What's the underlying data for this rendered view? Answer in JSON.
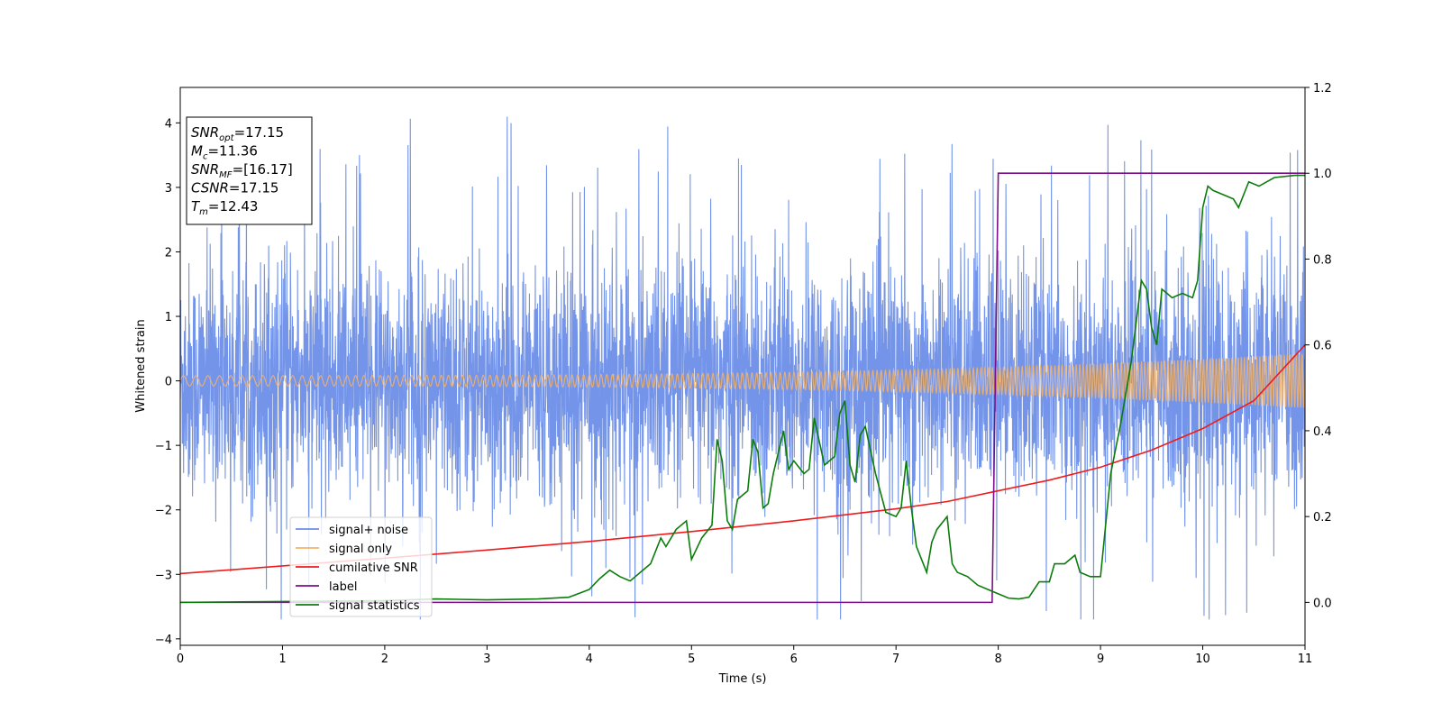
{
  "chart_data": {
    "type": "line",
    "title": "",
    "xlabel": "Time (s)",
    "ylabel": "Whitened strain",
    "y2label": "",
    "xlim": [
      0,
      11
    ],
    "ylim": [
      -4.1,
      4.55
    ],
    "y2lim": [
      -0.1,
      1.2
    ],
    "xticks": [
      0,
      1,
      2,
      3,
      4,
      5,
      6,
      7,
      8,
      9,
      10,
      11
    ],
    "yticks": [
      -4,
      -3,
      -2,
      -1,
      0,
      1,
      2,
      3,
      4
    ],
    "y2ticks": [
      0.0,
      0.2,
      0.4,
      0.6,
      0.8,
      1.0,
      1.2
    ],
    "grid": false,
    "legend_position": "lower-left",
    "info_box": {
      "lines": [
        {
          "base": "SNR",
          "sub": "opt",
          "value": "=17.15"
        },
        {
          "base": "M",
          "sub": "c",
          "value": "=11.36"
        },
        {
          "base": "SNR",
          "sub": "MF",
          "value": "=[16.17]"
        },
        {
          "base": "CSNR",
          "sub": "",
          "value": "=17.15"
        },
        {
          "base": "T",
          "sub": "m",
          "value": "=12.43"
        }
      ]
    },
    "series": [
      {
        "name": "signal+ noise",
        "color": "#6b8ee8",
        "axis": "left",
        "kind": "noise",
        "description_values": {
          "sigma": 0.9,
          "typical_max": 2.6,
          "peak_max": 4.15,
          "peak_min": -3.7
        }
      },
      {
        "name": "signal only",
        "color": "#f5b366",
        "axis": "left",
        "kind": "chirp",
        "amplitude_start": 0.08,
        "amplitude_end": 0.42
      },
      {
        "name": "cumilative SNR",
        "color": "#ee1c1c",
        "axis": "right",
        "x": [
          0,
          1,
          2,
          3,
          4,
          5,
          6,
          7,
          7.5,
          8,
          8.5,
          9,
          9.5,
          10,
          10.5,
          11
        ],
        "y": [
          0.067,
          0.085,
          0.103,
          0.122,
          0.142,
          0.165,
          0.19,
          0.218,
          0.235,
          0.26,
          0.285,
          0.315,
          0.355,
          0.405,
          0.47,
          0.6
        ]
      },
      {
        "name": "label",
        "color": "#7b0f8a",
        "axis": "right",
        "x": [
          0,
          7.94,
          8.0,
          11
        ],
        "y": [
          0.0,
          0.0,
          1.0,
          1.0
        ]
      },
      {
        "name": "signal statistics",
        "color": "#0b7c0b",
        "axis": "right",
        "x": [
          0,
          1,
          2,
          2.5,
          3,
          3.5,
          3.8,
          4.0,
          4.1,
          4.2,
          4.3,
          4.4,
          4.5,
          4.6,
          4.7,
          4.75,
          4.85,
          4.95,
          5.0,
          5.1,
          5.2,
          5.25,
          5.3,
          5.35,
          5.4,
          5.45,
          5.55,
          5.6,
          5.65,
          5.7,
          5.75,
          5.8,
          5.9,
          5.95,
          6.0,
          6.1,
          6.15,
          6.2,
          6.3,
          6.4,
          6.45,
          6.5,
          6.55,
          6.6,
          6.65,
          6.7,
          6.8,
          6.9,
          7.0,
          7.05,
          7.1,
          7.15,
          7.2,
          7.3,
          7.35,
          7.4,
          7.5,
          7.55,
          7.6,
          7.7,
          7.8,
          7.9,
          8.0,
          8.1,
          8.2,
          8.3,
          8.4,
          8.5,
          8.55,
          8.65,
          8.75,
          8.8,
          8.9,
          9.0,
          9.1,
          9.2,
          9.3,
          9.4,
          9.45,
          9.5,
          9.55,
          9.6,
          9.65,
          9.7,
          9.8,
          9.9,
          9.95,
          10.0,
          10.05,
          10.1,
          10.2,
          10.3,
          10.35,
          10.45,
          10.55,
          10.7,
          10.9,
          11.0
        ],
        "y": [
          0.0,
          0.002,
          0.004,
          0.008,
          0.006,
          0.008,
          0.012,
          0.03,
          0.055,
          0.075,
          0.06,
          0.05,
          0.07,
          0.09,
          0.15,
          0.13,
          0.17,
          0.19,
          0.1,
          0.15,
          0.18,
          0.38,
          0.33,
          0.19,
          0.17,
          0.24,
          0.26,
          0.38,
          0.35,
          0.22,
          0.23,
          0.3,
          0.4,
          0.31,
          0.33,
          0.3,
          0.31,
          0.43,
          0.32,
          0.34,
          0.44,
          0.47,
          0.32,
          0.28,
          0.39,
          0.41,
          0.3,
          0.21,
          0.2,
          0.22,
          0.33,
          0.22,
          0.13,
          0.07,
          0.14,
          0.17,
          0.2,
          0.09,
          0.07,
          0.06,
          0.04,
          0.03,
          0.02,
          0.01,
          0.008,
          0.012,
          0.048,
          0.048,
          0.09,
          0.09,
          0.11,
          0.07,
          0.06,
          0.06,
          0.3,
          0.42,
          0.56,
          0.75,
          0.73,
          0.64,
          0.6,
          0.73,
          0.72,
          0.71,
          0.72,
          0.71,
          0.75,
          0.92,
          0.97,
          0.96,
          0.95,
          0.94,
          0.92,
          0.98,
          0.97,
          0.99,
          0.995,
          0.995
        ]
      }
    ]
  }
}
